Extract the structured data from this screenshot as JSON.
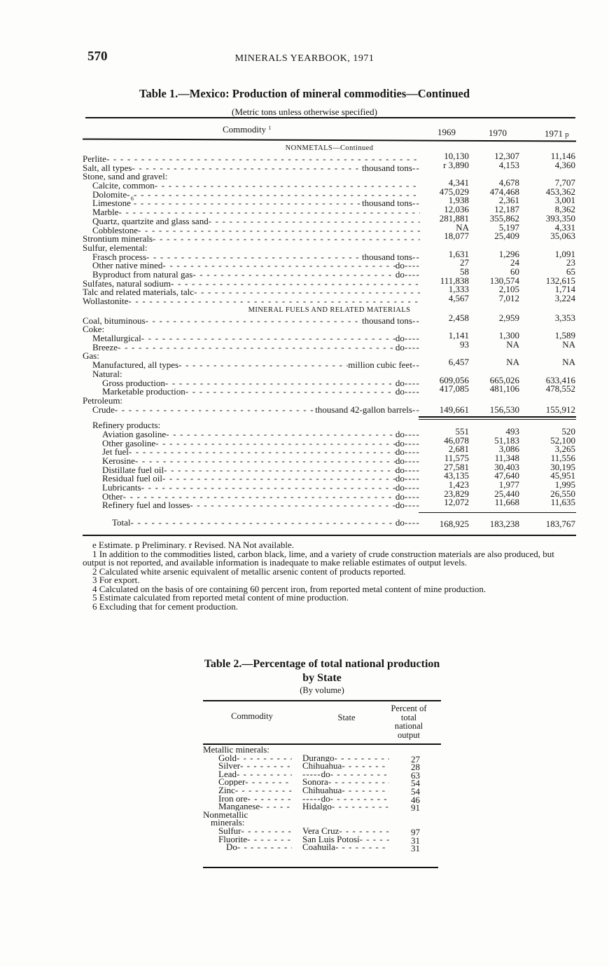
{
  "header": {
    "page_number": "570",
    "running_title": "MINERALS YEARBOOK, 1971"
  },
  "table1": {
    "title": "Table 1.—Mexico:  Production of mineral commodities—Continued",
    "subtitle": "(Metric tons unless otherwise specified)",
    "columns": {
      "commodity": "Commodity",
      "commodity_note": "1",
      "y1": "1969",
      "y2": "1970",
      "y3": "1971",
      "y3_note": "p"
    },
    "rows": [
      {
        "type": "section",
        "label": "NONMETALS—Continued"
      },
      {
        "label": "Perlite",
        "indent": 0,
        "values": [
          "10,130",
          "12,307",
          "11,146"
        ]
      },
      {
        "label": "Salt, all types",
        "indent": 0,
        "unit": "thousand tons",
        "values": [
          "r 3,890",
          "4,153",
          "4,360"
        ]
      },
      {
        "label": "Stone, sand and gravel:",
        "indent": 0,
        "noleader": true
      },
      {
        "label": "Calcite, common",
        "indent": 1,
        "values": [
          "4,341",
          "4,678",
          "7,707"
        ]
      },
      {
        "label": "Dolomite",
        "indent": 1,
        "values": [
          "475,029",
          "474,468",
          "453,362"
        ]
      },
      {
        "label": "Limestone",
        "note": "6",
        "indent": 1,
        "unit": "thousand tons",
        "values": [
          "1,938",
          "2,361",
          "3,001"
        ]
      },
      {
        "label": "Marble",
        "indent": 1,
        "values": [
          "12,036",
          "12,187",
          "8,362"
        ]
      },
      {
        "label": "Quartz, quartzite and glass sand",
        "indent": 1,
        "values": [
          "281,881",
          "355,862",
          "393,350"
        ]
      },
      {
        "label": "Cobblestone",
        "indent": 1,
        "values": [
          "NA",
          "5,197",
          "4,331"
        ]
      },
      {
        "label": "Strontium minerals",
        "indent": 0,
        "values": [
          "18,077",
          "25,409",
          "35,063"
        ]
      },
      {
        "label": "Sulfur, elemental:",
        "indent": 0,
        "noleader": true
      },
      {
        "label": "Frasch process",
        "indent": 1,
        "unit": "thousand tons",
        "values": [
          "1,631",
          "1,296",
          "1,091"
        ]
      },
      {
        "label": "Other native mined",
        "indent": 1,
        "unit": "do",
        "values": [
          "27",
          "24",
          "23"
        ]
      },
      {
        "label": "Byproduct from natural gas",
        "indent": 1,
        "unit": "do",
        "values": [
          "58",
          "60",
          "65"
        ]
      },
      {
        "label": "Sulfates, natural sodium",
        "indent": 0,
        "values": [
          "111,838",
          "130,574",
          "132,615"
        ]
      },
      {
        "label": "Talc and related materials, talc",
        "indent": 0,
        "values": [
          "1,333",
          "2,105",
          "1,714"
        ]
      },
      {
        "label": "Wollastonite",
        "indent": 0,
        "values": [
          "4,567",
          "7,012",
          "3,224"
        ]
      },
      {
        "type": "section",
        "label": "MINERAL FUELS AND RELATED MATERIALS"
      },
      {
        "label": "Coal, bituminous",
        "indent": 0,
        "unit": "thousand tons",
        "values": [
          "2,458",
          "2,959",
          "3,353"
        ]
      },
      {
        "label": "Coke:",
        "indent": 0,
        "noleader": true
      },
      {
        "label": "Metallurgical",
        "indent": 1,
        "unit": "do",
        "values": [
          "1,141",
          "1,300",
          "1,589"
        ]
      },
      {
        "label": "Breeze",
        "indent": 1,
        "unit": "do",
        "values": [
          "93",
          "NA",
          "NA"
        ]
      },
      {
        "label": "Gas:",
        "indent": 0,
        "noleader": true
      },
      {
        "label": "Manufactured, all types",
        "indent": 1,
        "unit": "million cubic feet",
        "values": [
          "6,457",
          "NA",
          "NA"
        ]
      },
      {
        "label": "Natural:",
        "indent": 1,
        "noleader": true
      },
      {
        "label": "Gross production",
        "indent": 2,
        "unit": "do",
        "values": [
          "609,056",
          "665,026",
          "633,416"
        ]
      },
      {
        "label": "Marketable production",
        "indent": 2,
        "unit": "do",
        "values": [
          "417,085",
          "481,106",
          "478,552"
        ]
      },
      {
        "label": "Petroleum:",
        "indent": 0,
        "noleader": true
      },
      {
        "label": "Crude",
        "indent": 1,
        "unit": "thousand 42-gallon barrels",
        "values": [
          "149,661",
          "156,530",
          "155,912"
        ]
      },
      {
        "type": "double"
      },
      {
        "label": "Refinery products:",
        "indent": 1,
        "noleader": true
      },
      {
        "label": "Aviation gasoline",
        "indent": 2,
        "unit": "do",
        "values": [
          "551",
          "493",
          "520"
        ]
      },
      {
        "label": "Other gasoline",
        "indent": 2,
        "unit": "do",
        "values": [
          "46,078",
          "51,183",
          "52,100"
        ]
      },
      {
        "label": "Jet fuel",
        "indent": 2,
        "unit": "do",
        "values": [
          "2,681",
          "3,086",
          "3,265"
        ]
      },
      {
        "label": "Kerosine",
        "indent": 2,
        "unit": "do",
        "values": [
          "11,575",
          "11,348",
          "11,556"
        ]
      },
      {
        "label": "Distillate fuel oil",
        "indent": 2,
        "unit": "do",
        "values": [
          "27,581",
          "30,403",
          "30,195"
        ]
      },
      {
        "label": "Residual fuel oil",
        "indent": 2,
        "unit": "do",
        "values": [
          "43,135",
          "47,640",
          "45,951"
        ]
      },
      {
        "label": "Lubricants",
        "indent": 2,
        "unit": "do",
        "values": [
          "1,423",
          "1,977",
          "1,995"
        ]
      },
      {
        "label": "Other",
        "indent": 2,
        "unit": "do",
        "values": [
          "23,829",
          "25,440",
          "26,550"
        ]
      },
      {
        "label": "Refinery fuel and losses",
        "indent": 2,
        "unit": "do",
        "values": [
          "12,072",
          "11,668",
          "11,635"
        ]
      },
      {
        "type": "total-rule"
      },
      {
        "label": "Total",
        "indent": 3,
        "unit": "do",
        "values": [
          "168,925",
          "183,238",
          "183,767"
        ]
      }
    ],
    "footnotes": [
      "e Estimate.     p Preliminary.     r Revised.     NA  Not available.",
      "1 In addition to the commodities listed, carbon black, lime, and a variety of crude construction materials are also produced, but output is not reported, and available information is inadequate to make reliable estimates of output levels.",
      "2 Calculated white arsenic equivalent of metallic arsenic content of products reported.",
      "3 For export.",
      "4 Calculated on the basis of ore containing 60 percent iron, from reported metal content of mine production.",
      "5 Estimate calculated from reported metal content of mine production.",
      "6 Excluding that for cement production."
    ]
  },
  "table2": {
    "title": "Table 2.—Percentage of total national production by State",
    "subtitle": "(By volume)",
    "columns": {
      "commodity": "Commodity",
      "state": "State",
      "percent": "Percent of total national output"
    },
    "rows": [
      {
        "commodity": "Metallic minerals:",
        "indent": 0,
        "group": true
      },
      {
        "commodity": "Gold",
        "indent": 1,
        "state": "Durango",
        "percent": "27"
      },
      {
        "commodity": "Silver",
        "indent": 1,
        "state": "Chihuahua",
        "percent": "28"
      },
      {
        "commodity": "Lead",
        "indent": 1,
        "state": "do",
        "ditto": true,
        "percent": "63"
      },
      {
        "commodity": "Copper",
        "indent": 1,
        "state": "Sonora",
        "percent": "54"
      },
      {
        "commodity": "Zinc",
        "indent": 1,
        "state": "Chihuahua",
        "percent": "54"
      },
      {
        "commodity": "Iron ore",
        "indent": 1,
        "state": "do",
        "ditto": true,
        "percent": "46"
      },
      {
        "commodity": "Manganese",
        "indent": 1,
        "state": "Hidalgo",
        "percent": "91"
      },
      {
        "commodity": "Nonmetallic",
        "indent": 0,
        "group": true
      },
      {
        "commodity": "minerals:",
        "indent": 0.5,
        "group": true
      },
      {
        "commodity": "Sulfur",
        "indent": 1,
        "state": "Vera Cruz",
        "percent": "97"
      },
      {
        "commodity": "Fluorite",
        "indent": 1,
        "state": "San Luis Potosí",
        "percent": "31"
      },
      {
        "commodity": "Do",
        "indent": 1.5,
        "state": "Coahuila",
        "percent": "31"
      }
    ]
  }
}
